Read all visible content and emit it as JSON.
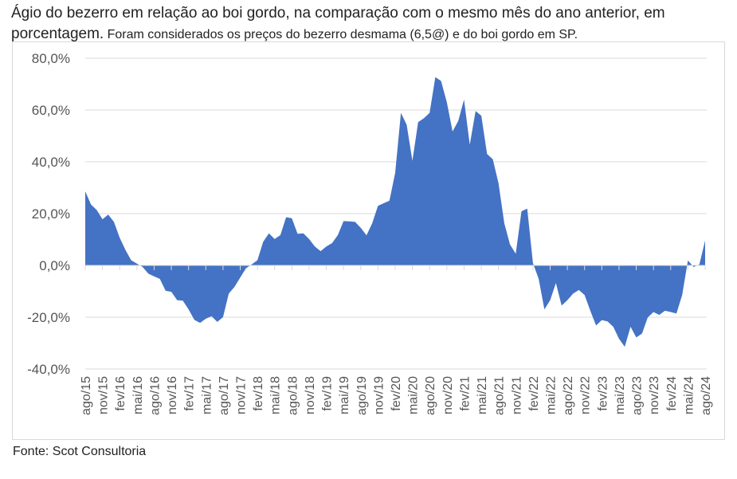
{
  "title_line1": "Ágio do bezerro em relação ao boi gordo, na comparação com o mesmo mês do ano anterior, em",
  "title_line2a": "porcentagem.",
  "title_line2b": " Foram considerados os preços do bezerro desmama (6,5@) e do boi gordo em SP.",
  "source": "Fonte: Scot Consultoria",
  "colors": {
    "area": "#4472C4",
    "grid": "#d9d9d9"
  },
  "chart_data": {
    "type": "area",
    "title": "Ágio do bezerro em relação ao boi gordo (%)",
    "xlabel": "",
    "ylabel": "",
    "ylim": [
      -40,
      80
    ],
    "y_ticks": [
      -40,
      -20,
      0,
      20,
      40,
      60,
      80
    ],
    "y_tick_labels": [
      "-40,0%",
      "-20,0%",
      "0,0%",
      "20,0%",
      "40,0%",
      "60,0%",
      "80,0%"
    ],
    "grid": true,
    "legend": "none",
    "x_label_every": 3,
    "categories": [
      "ago/15",
      "set/15",
      "out/15",
      "nov/15",
      "dez/15",
      "jan/16",
      "fev/16",
      "mar/16",
      "abr/16",
      "mai/16",
      "jun/16",
      "jul/16",
      "ago/16",
      "set/16",
      "out/16",
      "nov/16",
      "dez/16",
      "jan/17",
      "fev/17",
      "mar/17",
      "abr/17",
      "mai/17",
      "jun/17",
      "jul/17",
      "ago/17",
      "set/17",
      "out/17",
      "nov/17",
      "dez/17",
      "jan/18",
      "fev/18",
      "mar/18",
      "abr/18",
      "mai/18",
      "jun/18",
      "jul/18",
      "ago/18",
      "set/18",
      "out/18",
      "nov/18",
      "dez/18",
      "jan/19",
      "fev/19",
      "mar/19",
      "abr/19",
      "mai/19",
      "jun/19",
      "jul/19",
      "ago/19",
      "set/19",
      "out/19",
      "nov/19",
      "dez/19",
      "jan/20",
      "fev/20",
      "mar/20",
      "abr/20",
      "mai/20",
      "jun/20",
      "jul/20",
      "ago/20",
      "set/20",
      "out/20",
      "nov/20",
      "dez/20",
      "jan/21",
      "fev/21",
      "mar/21",
      "abr/21",
      "mai/21",
      "jun/21",
      "jul/21",
      "ago/21",
      "set/21",
      "out/21",
      "nov/21",
      "dez/21",
      "jan/22",
      "fev/22",
      "mar/22",
      "abr/22",
      "mai/22",
      "jun/22",
      "jul/22",
      "ago/22",
      "set/22",
      "out/22",
      "nov/22",
      "dez/22",
      "jan/23",
      "fev/23",
      "mar/23",
      "abr/23",
      "mai/23",
      "jun/23",
      "jul/23",
      "ago/23",
      "set/23",
      "out/23",
      "nov/23",
      "dez/23",
      "jan/24",
      "fev/24",
      "mar/24",
      "abr/24",
      "mai/24",
      "jun/24",
      "jul/24",
      "ago/24"
    ],
    "values": [
      28.6,
      23.5,
      21.4,
      17.8,
      19.6,
      16.8,
      10.7,
      6.0,
      2.0,
      0.7,
      -0.6,
      -3.2,
      -4.2,
      -5.2,
      -9.8,
      -10.2,
      -13.4,
      -13.6,
      -17.0,
      -21.0,
      -22.2,
      -20.6,
      -19.6,
      -21.8,
      -20.0,
      -10.9,
      -8.3,
      -4.7,
      -1.1,
      0.4,
      2.0,
      9.1,
      12.4,
      10.2,
      11.7,
      18.6,
      18.2,
      12.2,
      12.4,
      10.2,
      7.3,
      5.5,
      7.3,
      8.6,
      11.7,
      17.1,
      17.0,
      16.8,
      14.5,
      11.6,
      16.3,
      23.0,
      24.0,
      25.0,
      35.8,
      58.9,
      54.3,
      40.4,
      55.3,
      56.8,
      58.9,
      72.7,
      71.2,
      63.0,
      51.7,
      55.8,
      64.0,
      46.6,
      59.6,
      57.8,
      43.0,
      41.0,
      31.7,
      16.3,
      8.1,
      4.5,
      20.9,
      21.9,
      0.9,
      -5.2,
      -17.0,
      -13.4,
      -6.8,
      -15.5,
      -13.4,
      -10.9,
      -9.5,
      -11.4,
      -17.5,
      -23.2,
      -21.1,
      -21.6,
      -23.7,
      -28.3,
      -31.4,
      -23.7,
      -27.8,
      -26.3,
      -20.1,
      -18.0,
      -19.1,
      -17.5,
      -18.0,
      -18.6,
      -11.4,
      1.9,
      -0.6,
      0.4,
      9.6
    ]
  }
}
